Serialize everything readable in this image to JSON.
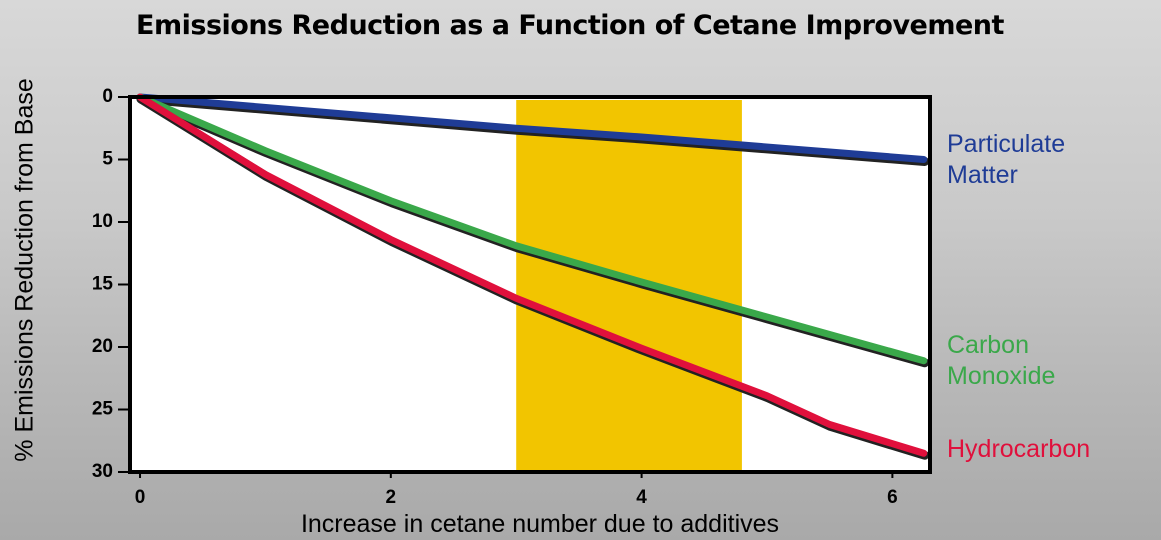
{
  "chart_data": {
    "type": "line",
    "title": "Emissions Reduction as a Function of Cetane Improvement",
    "x_label": "Increase in cetane number due to additives",
    "y_label": "% Emissions Reduction from Base",
    "xlim": [
      -0.08,
      6.3
    ],
    "xticks": [
      0,
      2,
      4,
      6
    ],
    "ylim": [
      30,
      0
    ],
    "yticks": [
      0,
      5,
      10,
      15,
      20,
      25,
      30
    ],
    "shaded_band": {
      "x": [
        3,
        4.8
      ],
      "color": "#f2c500"
    },
    "series": [
      {
        "name": "Particulate Matter",
        "color": "#1f3c96",
        "x": [
          0,
          3,
          4,
          6.25
        ],
        "values": [
          0,
          2.5,
          3.2,
          5
        ]
      },
      {
        "name": "Carbon Monoxide",
        "color": "#3aa84a",
        "x": [
          0,
          1,
          2,
          3,
          4,
          5,
          6.25
        ],
        "values": [
          0,
          4.3,
          8.3,
          11.9,
          14.8,
          17.6,
          21.1
        ]
      },
      {
        "name": "Hydrocarbon",
        "color": "#e0103c",
        "x": [
          0,
          1,
          2,
          3,
          4,
          5,
          5.5,
          6.25
        ],
        "values": [
          0,
          6.2,
          11.4,
          16.1,
          20.1,
          23.9,
          26.2,
          28.5
        ]
      }
    ]
  }
}
